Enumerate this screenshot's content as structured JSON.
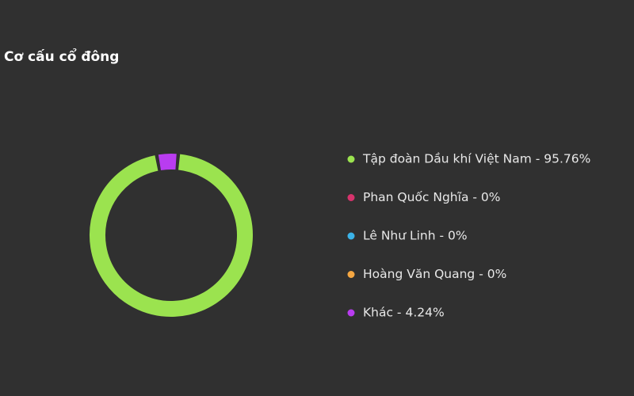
{
  "chart_data": {
    "type": "donut",
    "title": "Cơ cấu cổ đông",
    "categories": [
      "Tập đoàn Dầu khí Việt Nam - 95.76%",
      "Phan Quốc Nghĩa - 0%",
      "Lê Như Linh - 0%",
      "Hoàng Văn Quang - 0%",
      "Khác - 4.24%"
    ],
    "values": [
      95.76,
      0,
      0,
      0,
      4.24
    ],
    "colors": [
      "#9be34f",
      "#d6336c",
      "#3bb3e8",
      "#f5a742",
      "#b93cf0"
    ]
  }
}
